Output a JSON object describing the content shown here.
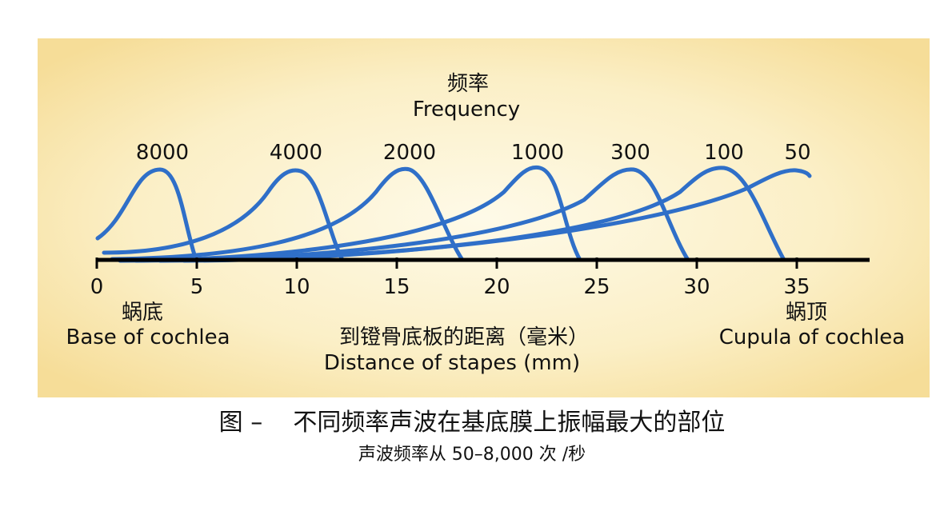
{
  "header": {
    "title_zh": "频率",
    "title_en": "Frequency"
  },
  "curves": [
    {
      "label": "8000"
    },
    {
      "label": "4000"
    },
    {
      "label": "2000"
    },
    {
      "label": "1000"
    },
    {
      "label": "300"
    },
    {
      "label": "100"
    },
    {
      "label": "50"
    }
  ],
  "axis": {
    "ticks": [
      "0",
      "5",
      "10",
      "15",
      "20",
      "25",
      "30",
      "35"
    ],
    "left_zh": "蜗底",
    "left_en": "Base of cochlea",
    "center_zh": "到镫骨底板的距离（毫米）",
    "center_en": "Distance of stapes (mm)",
    "right_zh": "蜗顶",
    "right_en": "Cupula of cochlea"
  },
  "caption": {
    "title": "图 –    不同频率声波在基底膜上振幅最大的部位",
    "subtitle": "声波频率从 50–8,000 次 /秒"
  }
}
